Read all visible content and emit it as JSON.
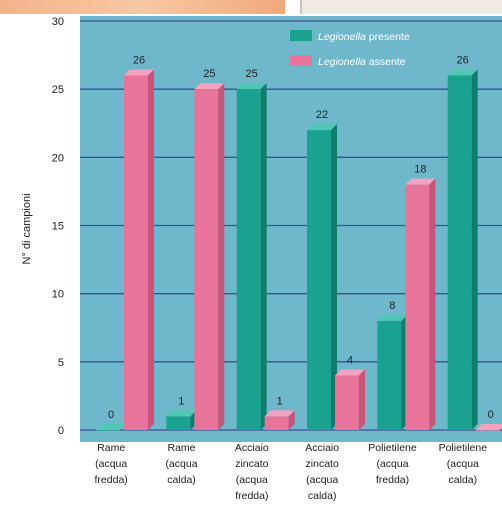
{
  "chart_data": {
    "type": "bar",
    "ylabel": "N° di campioni",
    "ylim": [
      0,
      30
    ],
    "yticks": [
      0,
      5,
      10,
      15,
      20,
      25,
      30
    ],
    "grid": true,
    "legend_position": "top-right",
    "categories": [
      [
        "Rame",
        "(acqua",
        "fredda)"
      ],
      [
        "Rame",
        "(acqua",
        "calda)"
      ],
      [
        "Acciaio",
        "zincato",
        "(acqua",
        "fredda)"
      ],
      [
        "Acciaio",
        "zincato",
        "(acqua",
        "calda)"
      ],
      [
        "Polietilene",
        "(acqua",
        "fredda)"
      ],
      [
        "Polietilene",
        "(acqua",
        "calda)"
      ]
    ],
    "series": [
      {
        "name_italic": "Legionella",
        "name_rest": " presente",
        "color": "#1aa18f",
        "values": [
          0,
          1,
          25,
          22,
          8,
          26
        ]
      },
      {
        "name_italic": "Legionella",
        "name_rest": " assente",
        "color": "#e8739b",
        "values": [
          26,
          25,
          1,
          4,
          18,
          0
        ]
      }
    ],
    "plot_background": "#6fb8cc",
    "grid_color": "#3f4f8a"
  }
}
